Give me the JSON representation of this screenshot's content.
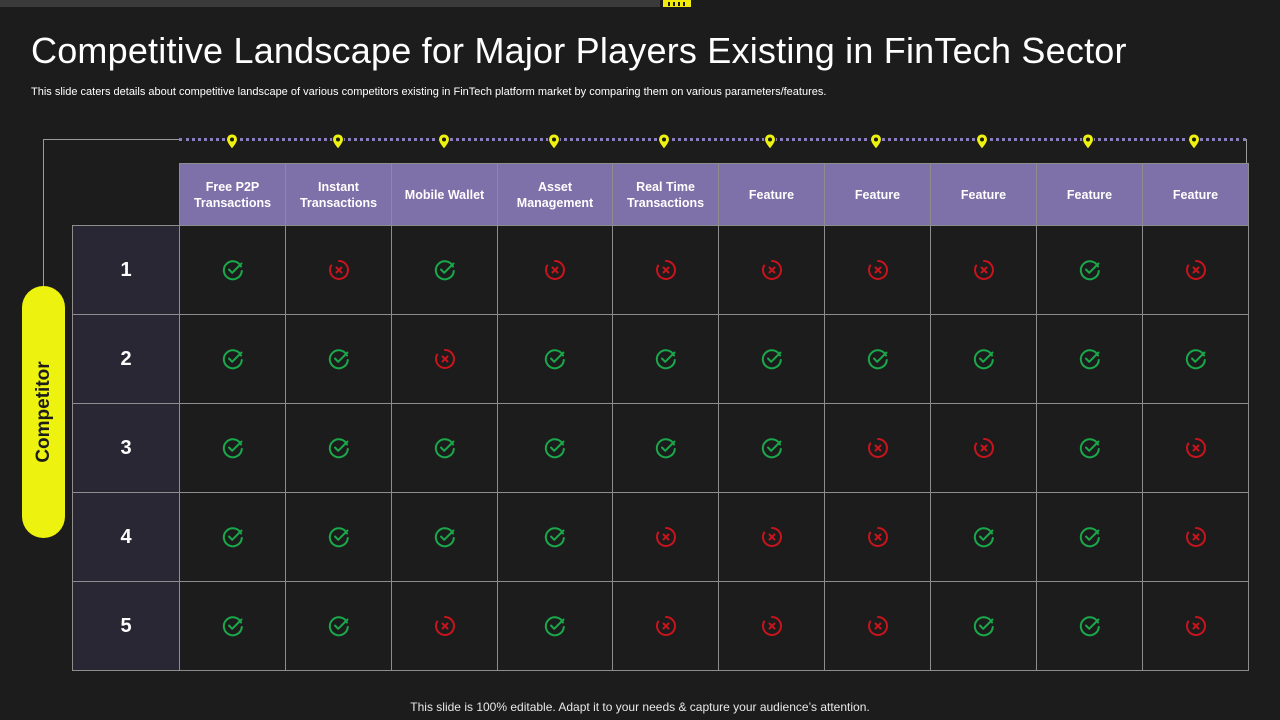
{
  "slide": {
    "title": "Competitive Landscape for Major Players Existing in FinTech Sector",
    "subtitle": "This slide caters details about competitive landscape of various competitors existing in FinTech platform market by comparing them on various parameters/features.",
    "footer": "This slide is 100% editable. Adapt it to your needs & capture your audience’s attention."
  },
  "colors": {
    "background": "#1c1c1c",
    "header": "#7e70a8",
    "accent": "#eef20f",
    "check": "#1aa84b",
    "cross": "#c8141c"
  },
  "table": {
    "side_label": "Competitor",
    "columns": [
      "Free P2P Transactions",
      "Instant Transactions",
      "Mobile Wallet",
      "Asset Management",
      "Real Time Transactions",
      "Feature",
      "Feature",
      "Feature",
      "Feature",
      "Feature"
    ],
    "rows": [
      {
        "label": "1",
        "marks": [
          "check",
          "cross",
          "check",
          "cross",
          "cross",
          "cross",
          "cross",
          "cross",
          "check",
          "cross"
        ]
      },
      {
        "label": "2",
        "marks": [
          "check",
          "check",
          "cross",
          "check",
          "check",
          "check",
          "check",
          "check",
          "check",
          "check"
        ]
      },
      {
        "label": "3",
        "marks": [
          "check",
          "check",
          "check",
          "check",
          "check",
          "check",
          "cross",
          "cross",
          "check",
          "cross"
        ]
      },
      {
        "label": "4",
        "marks": [
          "check",
          "check",
          "check",
          "check",
          "cross",
          "cross",
          "cross",
          "check",
          "check",
          "cross"
        ]
      },
      {
        "label": "5",
        "marks": [
          "check",
          "check",
          "cross",
          "check",
          "cross",
          "cross",
          "cross",
          "check",
          "check",
          "cross"
        ]
      }
    ]
  },
  "icons": {
    "check": "check-circle-icon",
    "cross": "x-circle-icon",
    "pin": "map-pin-icon"
  }
}
